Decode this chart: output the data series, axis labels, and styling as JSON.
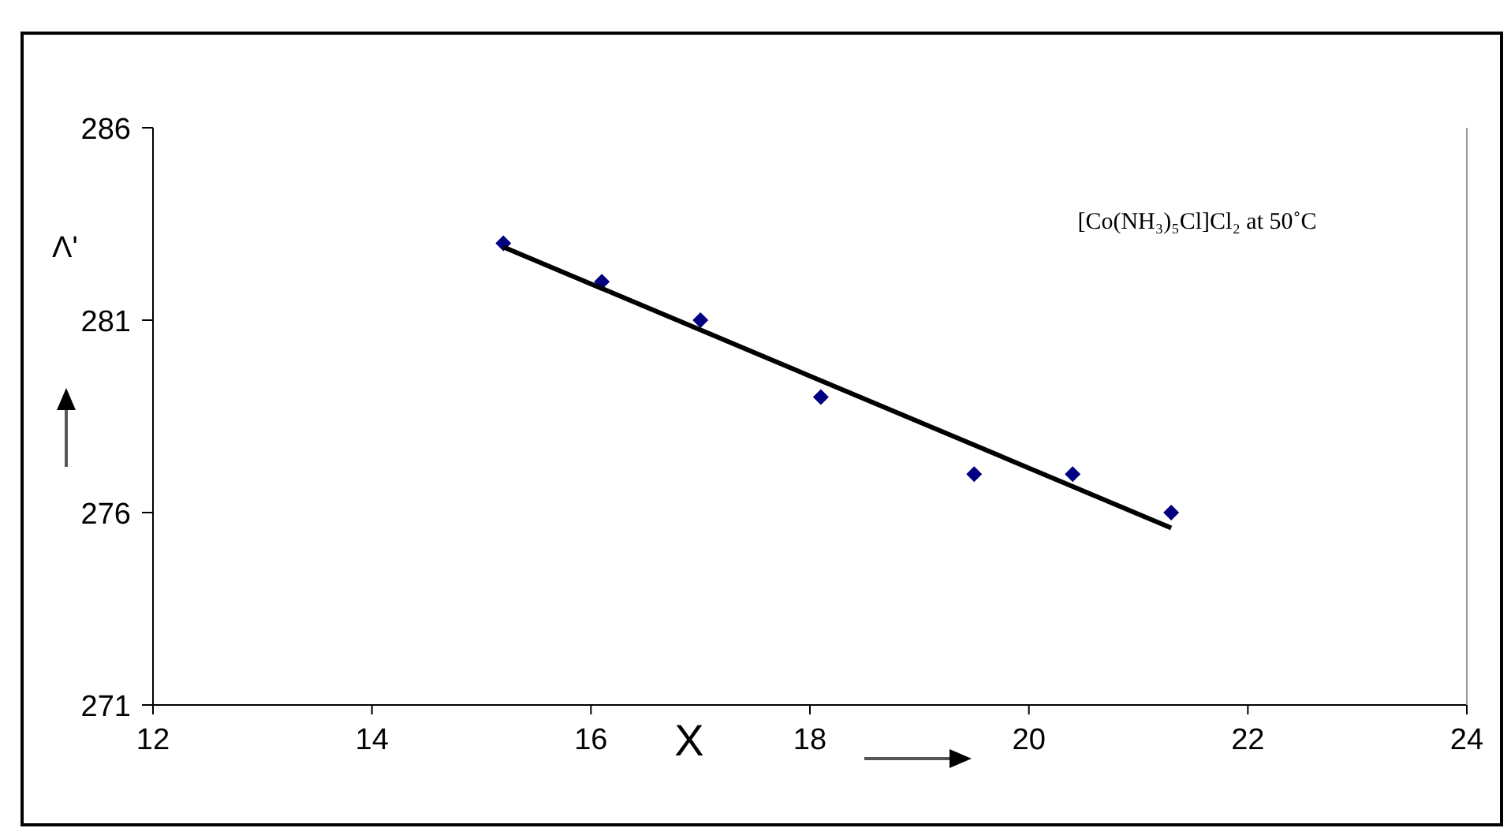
{
  "chart_data": {
    "type": "scatter",
    "xlabel": "X",
    "ylabel": "Λ'",
    "annotations": [
      "[Co(NH₃)₅Cl]Cl₂ at 50˚C"
    ],
    "xlim": [
      12,
      24
    ],
    "xticks": [
      12,
      14,
      16,
      18,
      20,
      22,
      24
    ],
    "ylim": [
      271,
      286
    ],
    "yticks": [
      271,
      276,
      281,
      286
    ],
    "grid": false,
    "marker": "diamond",
    "series": [
      {
        "color": "#000080",
        "x": [
          15.2,
          16.1,
          17.0,
          18.1,
          19.5,
          20.4,
          21.3
        ],
        "values": [
          283,
          282,
          281,
          279,
          277,
          277,
          276
        ]
      },
      {
        "type": "line",
        "color": "#000000",
        "marker": "none",
        "line_style": "solid",
        "x": [
          15.2,
          21.3
        ],
        "values": [
          282.9,
          275.6
        ]
      }
    ]
  }
}
